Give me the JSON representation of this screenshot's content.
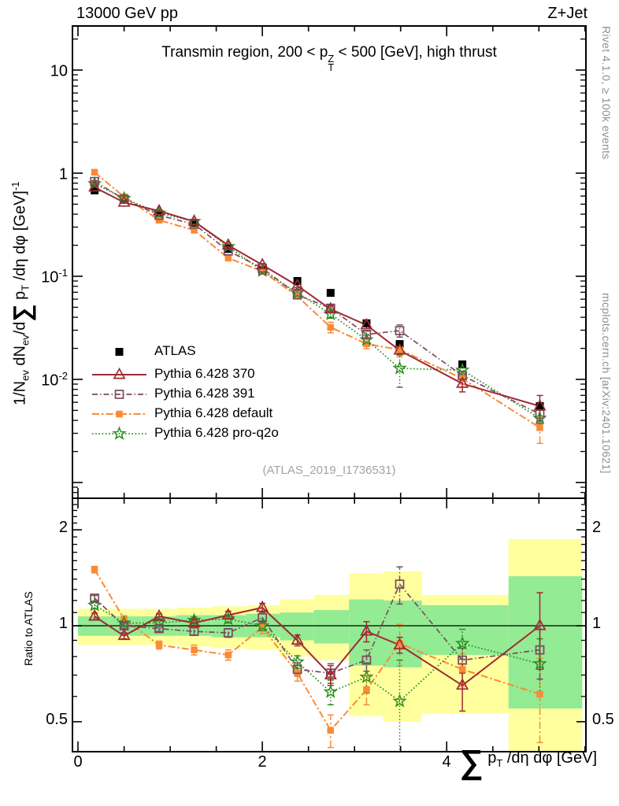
{
  "header": {
    "left": "13000 GeV pp",
    "right": "Z+Jet"
  },
  "title": {
    "pre": "Transmin region, 200 < p",
    "stack_top": "Z",
    "stack_bot": "T",
    "post": " < 500 [GeV], high thrust"
  },
  "watermark": "(ATLAS_2019_I1736531)",
  "side_notes": {
    "top_right": "Rivet 4.1.0, ≥ 100k events",
    "bottom_right": "mcplots.cern.ch [arXiv:2401.10621]"
  },
  "axes": {
    "y_main_label": {
      "p1": "1/N",
      "s1": "ev",
      "p2": " dN",
      "s2": "ev",
      "p3": "/d",
      "sum": "∑",
      "p4": " p",
      "s3": "T",
      "p5": " /dη dφ  [GeV]",
      "e1": "-1"
    },
    "x_label": {
      "sum": "∑",
      "p1": " p",
      "s1": "T",
      "p2": " /dη dφ [GeV]"
    },
    "ratio_y_label": "Ratio to ATLAS",
    "y_main_ticks": [
      {
        "base": "10",
        "exp": ""
      },
      {
        "base": "1",
        "exp": ""
      },
      {
        "base": "10",
        "exp": "-1"
      },
      {
        "base": "10",
        "exp": "-2"
      }
    ],
    "ratio_ticks": [
      "2",
      "1",
      "0.5"
    ],
    "x_ticks": [
      "0",
      "2",
      "4"
    ]
  },
  "colors": {
    "atlas": "#000000",
    "py370": "#9f2a33",
    "py391": "#7a4b5e",
    "pydefault": "#fb8a34",
    "pyq2o": "#2c8c1e",
    "band_yellow": "#ffff9e",
    "band_green": "#93eb93",
    "frame": "#000000",
    "watermark": "#a3a3a3",
    "side_text": "#8f8f8f"
  },
  "chart_data": {
    "type": "line",
    "title": "Transmin region, 200 < pT(Z) < 500 [GeV], high thrust",
    "xlabel": "sum pT /deta dphi [GeV]",
    "ylabel": "1/Nev dNev/d sum pT /deta dphi [GeV]^-1",
    "ratio_ylabel": "Ratio to ATLAS",
    "x_range": [
      -0.06,
      5.51
    ],
    "y_main_range": [
      0.0007,
      26.7
    ],
    "ratio_range": [
      0.4,
      2.45
    ],
    "x": [
      0.18,
      0.5,
      0.88,
      1.26,
      1.63,
      2.0,
      2.38,
      2.74,
      3.13,
      3.49,
      4.17,
      5.01
    ],
    "bin_edges": [
      0,
      0.34,
      0.69,
      1.07,
      1.45,
      1.82,
      2.19,
      2.56,
      2.94,
      3.31,
      3.73,
      4.67,
      5.47
    ],
    "series": [
      {
        "key": "atlas",
        "label": "ATLAS",
        "color": "#000000",
        "marker": "square-filled",
        "line": "none",
        "width": 2,
        "values": [
          0.68,
          0.56,
          0.4,
          0.33,
          0.185,
          0.113,
          0.09,
          0.069,
          0.035,
          0.022,
          0.014,
          0.0055
        ],
        "err_rel": [
          0.03,
          0.02,
          0.02,
          0.02,
          0.02,
          0.02,
          0.025,
          0.03,
          0.035,
          0.04,
          0.045,
          0.06
        ]
      },
      {
        "key": "py370",
        "label": "Pythia 6.428 370",
        "color": "#9f2a33",
        "marker": "triangle-open",
        "line": "solid",
        "width": 2,
        "values": [
          0.73,
          0.52,
          0.43,
          0.34,
          0.2,
          0.129,
          0.081,
          0.048,
          0.0336,
          0.0191,
          0.0091,
          0.0055
        ],
        "ratio": [
          1.07,
          0.93,
          1.07,
          1.02,
          1.08,
          1.14,
          0.9,
          0.7,
          0.96,
          0.87,
          0.65,
          1.0
        ],
        "ratio_err": [
          0.025,
          0.02,
          0.02,
          0.025,
          0.03,
          0.035,
          0.035,
          0.05,
          0.07,
          0.05,
          0.11,
          0.27
        ]
      },
      {
        "key": "py391",
        "label": "Pythia 6.428 391",
        "color": "#7a4b5e",
        "marker": "square-open",
        "line": "dash-dot",
        "width": 1.7,
        "values": [
          0.83,
          0.56,
          0.39,
          0.32,
          0.176,
          0.12,
          0.066,
          0.049,
          0.0273,
          0.0297,
          0.0109,
          0.0046
        ],
        "ratio": [
          1.22,
          1.0,
          0.98,
          0.96,
          0.95,
          1.06,
          0.73,
          0.71,
          0.78,
          1.35,
          0.78,
          0.84
        ],
        "ratio_err": [
          0.025,
          0.02,
          0.02,
          0.025,
          0.03,
          0.035,
          0.035,
          0.05,
          0.06,
          0.18,
          0.07,
          0.16
        ]
      },
      {
        "key": "pydefault",
        "label": "Pythia 6.428 default",
        "color": "#fb8a34",
        "marker": "square-filled",
        "line": "dash-dot-wide",
        "width": 2,
        "values": [
          1.02,
          0.59,
          0.35,
          0.28,
          0.15,
          0.112,
          0.064,
          0.032,
          0.0221,
          0.0194,
          0.0102,
          0.0034
        ],
        "ratio": [
          1.5,
          1.05,
          0.87,
          0.84,
          0.81,
          0.99,
          0.71,
          0.47,
          0.63,
          0.88,
          0.73,
          0.61
        ],
        "ratio_err": [
          0.035,
          0.025,
          0.025,
          0.03,
          0.03,
          0.045,
          0.04,
          0.055,
          0.065,
          0.13,
          0.085,
          0.18
        ]
      },
      {
        "key": "pyq2o",
        "label": "Pythia 6.428 pro-q2o",
        "color": "#2c8c1e",
        "marker": "star-open",
        "line": "dotted",
        "width": 1.8,
        "values": [
          0.79,
          0.57,
          0.41,
          0.34,
          0.194,
          0.113,
          0.069,
          0.043,
          0.0242,
          0.0128,
          0.0123,
          0.0042
        ],
        "ratio": [
          1.16,
          1.02,
          1.02,
          1.04,
          1.05,
          1.0,
          0.77,
          0.62,
          0.69,
          0.58,
          0.88,
          0.76
        ],
        "ratio_err": [
          0.03,
          0.02,
          0.02,
          0.025,
          0.03,
          0.035,
          0.035,
          0.055,
          0.075,
          0.2,
          0.095,
          0.15
        ]
      }
    ],
    "bands": {
      "yellow_lo": [
        0.87,
        0.87,
        0.87,
        0.86,
        0.85,
        0.84,
        0.8,
        0.78,
        0.52,
        0.5,
        0.53,
        0.4
      ],
      "yellow_hi": [
        1.13,
        1.13,
        1.13,
        1.14,
        1.15,
        1.16,
        1.21,
        1.25,
        1.46,
        1.48,
        1.25,
        1.87
      ],
      "green_lo": [
        0.93,
        0.93,
        0.93,
        0.93,
        0.92,
        0.92,
        0.9,
        0.88,
        0.75,
        0.74,
        0.81,
        0.55
      ],
      "green_hi": [
        1.07,
        1.07,
        1.07,
        1.08,
        1.08,
        1.09,
        1.1,
        1.12,
        1.21,
        1.2,
        1.16,
        1.43
      ]
    },
    "legend_position": "left-middle",
    "grid": false
  }
}
